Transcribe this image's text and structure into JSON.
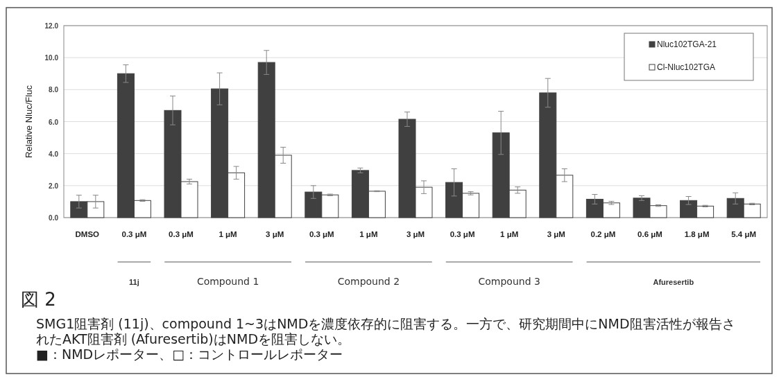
{
  "chart_data": {
    "type": "bar",
    "ylabel": "Relative Nluc/Fluc",
    "categories": [
      "DMSO",
      "0.3 μM",
      "0.3 μM",
      "1 μM",
      "3 μM",
      "0.3 μM",
      "1 μM",
      "3 μM",
      "0.3 μM",
      "1 μM",
      "3 μM",
      "0.2 μM",
      "0.6 μM",
      "1.8 μM",
      "5.4 μM"
    ],
    "series": [
      {
        "name": "Nluc102TGA-21",
        "color": "#404040",
        "values": [
          1.0,
          9.0,
          6.7,
          8.05,
          9.7,
          1.6,
          2.95,
          6.15,
          2.2,
          5.3,
          7.8,
          1.15,
          1.22,
          1.07,
          1.2
        ],
        "errors": [
          0.4,
          0.55,
          0.9,
          1.0,
          0.75,
          0.4,
          0.15,
          0.45,
          0.85,
          1.35,
          0.9,
          0.3,
          0.15,
          0.25,
          0.35
        ]
      },
      {
        "name": "Cl-Nluc102TGA",
        "color": "#ffffff",
        "values": [
          1.0,
          1.07,
          2.25,
          2.8,
          3.9,
          1.42,
          1.65,
          1.9,
          1.52,
          1.72,
          2.65,
          0.92,
          0.75,
          0.72,
          0.85
        ],
        "errors": [
          0.4,
          0.05,
          0.15,
          0.4,
          0.5,
          0.05,
          0.03,
          0.4,
          0.1,
          0.2,
          0.4,
          0.1,
          0.05,
          0.05,
          0.05
        ]
      }
    ],
    "ylim": [
      0,
      12
    ],
    "yticks": [
      {
        "value": 0,
        "label": "0.0"
      },
      {
        "value": 2,
        "label": "2.0"
      },
      {
        "value": 4,
        "label": "4.0"
      },
      {
        "value": 6,
        "label": "6.0"
      },
      {
        "value": 8,
        "label": "8.0"
      },
      {
        "value": 10,
        "label": "10.0"
      },
      {
        "value": 12,
        "label": "12.0"
      }
    ],
    "grid": "y",
    "legend": "top right",
    "annotations": [
      "11j",
      "Compound 1",
      "Compound 2",
      "Compound 3",
      "Afuresertib",
      "図 2",
      "SMG1阻害剤 (11j)、compound 1~3はNMDを濃度依存的に阻害する。一方で、研究期間中にNMD阻害活性が報告されたAKT阻害剤 (Afuresertib)はNMDを阻害しない。",
      "■：NMDレポーター、□：コントロールレポーター"
    ]
  }
}
